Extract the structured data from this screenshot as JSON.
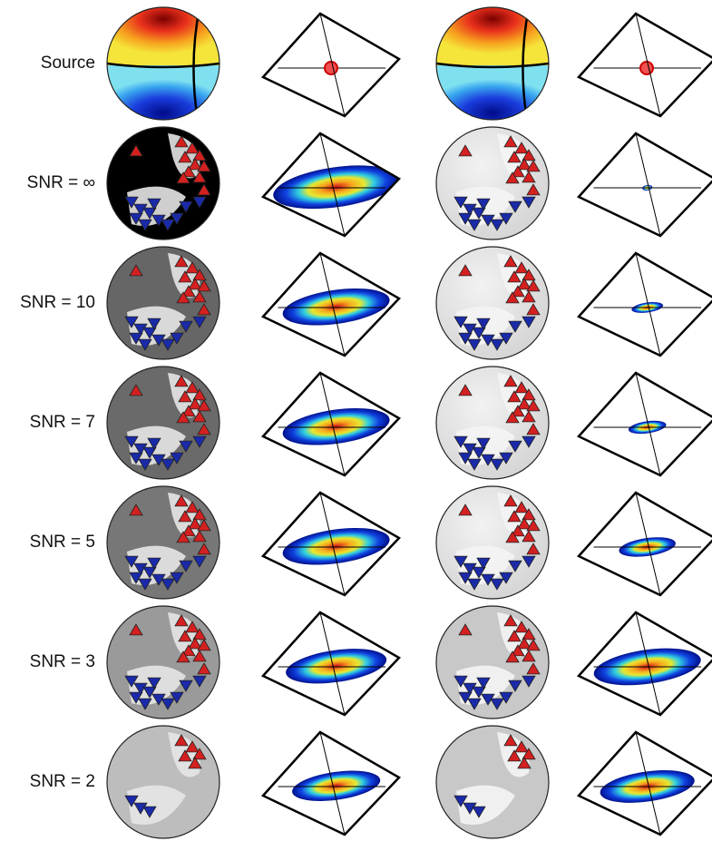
{
  "rows": [
    "Source",
    "SNR = ∞",
    "SNR = 10",
    "SNR = 7",
    "SNR = 5",
    "SNR = 3",
    "SNR = 2"
  ]
}
